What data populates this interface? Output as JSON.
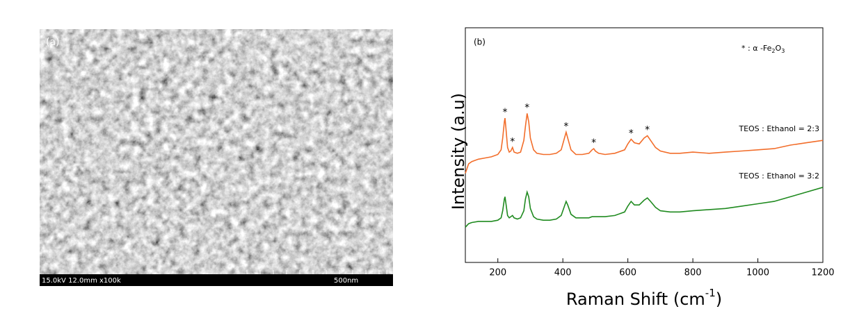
{
  "sem_image": {
    "label": "(a)",
    "info": "15.0kV 12.0mm x100k",
    "scale": "500nm"
  },
  "chart_data": {
    "type": "line",
    "panel_label": "(b)",
    "xlabel": {
      "text": "Raman Shift (cm",
      "sup": "-1",
      "end": ")"
    },
    "ylabel": "Intensity (a.u)",
    "legend_note": {
      "prefix": "* : α -Fe",
      "sub1": "2",
      "mid": "O",
      "sub2": "3"
    },
    "peak_label": "*",
    "peaks": [
      222,
      245,
      290,
      410,
      495,
      610,
      660
    ],
    "xlim": [
      100,
      1200
    ],
    "xticks": [
      200,
      400,
      600,
      800,
      1000,
      1200
    ],
    "ylim": [
      0,
      100
    ],
    "x": [
      100,
      110,
      120,
      140,
      160,
      180,
      200,
      210,
      215,
      220,
      222,
      225,
      230,
      235,
      240,
      245,
      250,
      260,
      270,
      280,
      285,
      290,
      295,
      300,
      310,
      320,
      340,
      360,
      380,
      395,
      405,
      410,
      415,
      425,
      440,
      460,
      480,
      490,
      495,
      500,
      510,
      530,
      560,
      590,
      600,
      610,
      620,
      635,
      650,
      660,
      670,
      685,
      700,
      730,
      760,
      800,
      850,
      900,
      950,
      1000,
      1050,
      1100,
      1150,
      1200
    ],
    "series": [
      {
        "name": "TEOS : Ethanol = 2:3",
        "color": "#f26d2a",
        "values": [
          38,
          42,
          43,
          44,
          44.5,
          45,
          46,
          48,
          53,
          60,
          61.5,
          57,
          49,
          47,
          47.5,
          49,
          47,
          46.5,
          47,
          52,
          58,
          63.5,
          60,
          53,
          48,
          46.5,
          46,
          46,
          46.5,
          48,
          53,
          55.5,
          53,
          48,
          46,
          46,
          46.5,
          48,
          48.5,
          47.5,
          46.5,
          46,
          46.5,
          48,
          50.5,
          52.5,
          51,
          50.5,
          53,
          54,
          52,
          49,
          47.5,
          46.5,
          46.5,
          47,
          46.5,
          47,
          47.5,
          48,
          48.5,
          50,
          51,
          52
        ]
      },
      {
        "name": "TEOS : Ethanol = 3:2",
        "color": "#1f8a1f",
        "values": [
          15,
          16.5,
          17,
          17.5,
          17.5,
          17.5,
          18,
          19,
          22,
          27,
          28,
          25,
          20,
          19,
          19.5,
          20,
          19,
          18.5,
          19,
          22,
          27,
          30,
          28,
          23,
          19.5,
          18.5,
          18,
          18,
          18.5,
          20,
          24,
          26,
          24.5,
          20.5,
          19,
          19,
          19,
          19.5,
          19.5,
          19.5,
          19.5,
          19.5,
          20,
          21.5,
          24,
          26,
          24.5,
          24.5,
          26.5,
          27.5,
          26,
          23.5,
          22,
          21.5,
          21.5,
          22,
          22.5,
          23,
          24,
          25,
          26,
          28,
          30,
          32
        ]
      }
    ]
  }
}
